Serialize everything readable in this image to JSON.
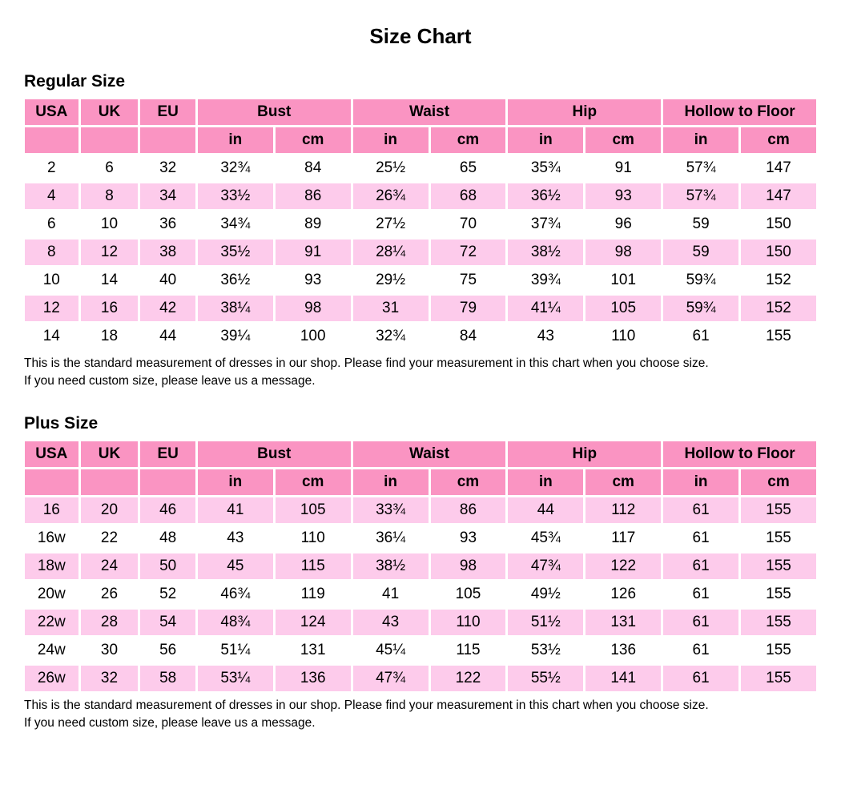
{
  "page": {
    "title": "Size Chart"
  },
  "colors": {
    "header_pink": "#FA94C2",
    "row_pink": "#FDCBEB",
    "row_white": "#FFFFFF",
    "text": "#000000"
  },
  "tables": [
    {
      "section_title": "Regular Size",
      "group_headers": [
        {
          "label": "USA",
          "span": 1
        },
        {
          "label": "UK",
          "span": 1
        },
        {
          "label": "EU",
          "span": 1
        },
        {
          "label": "Bust",
          "span": 2
        },
        {
          "label": "Waist",
          "span": 2
        },
        {
          "label": "Hip",
          "span": 2
        },
        {
          "label": "Hollow to Floor",
          "span": 2
        }
      ],
      "sub_headers": [
        "",
        "",
        "",
        "in",
        "cm",
        "in",
        "cm",
        "in",
        "cm",
        "in",
        "cm"
      ],
      "first_row_shaded": false,
      "rows": [
        [
          "2",
          "6",
          "32",
          "32¾",
          "84",
          "25½",
          "65",
          "35¾",
          "91",
          "57¾",
          "147"
        ],
        [
          "4",
          "8",
          "34",
          "33½",
          "86",
          "26¾",
          "68",
          "36½",
          "93",
          "57¾",
          "147"
        ],
        [
          "6",
          "10",
          "36",
          "34¾",
          "89",
          "27½",
          "70",
          "37¾",
          "96",
          "59",
          "150"
        ],
        [
          "8",
          "12",
          "38",
          "35½",
          "91",
          "28¼",
          "72",
          "38½",
          "98",
          "59",
          "150"
        ],
        [
          "10",
          "14",
          "40",
          "36½",
          "93",
          "29½",
          "75",
          "39¾",
          "101",
          "59¾",
          "152"
        ],
        [
          "12",
          "16",
          "42",
          "38¼",
          "98",
          "31",
          "79",
          "41¼",
          "105",
          "59¾",
          "152"
        ],
        [
          "14",
          "18",
          "44",
          "39¼",
          "100",
          "32¾",
          "84",
          "43",
          "110",
          "61",
          "155"
        ]
      ],
      "notes": [
        "This is the standard measurement of dresses in our shop. Please find your measurement in this chart when you choose size.",
        "If you need custom size, please leave us a message."
      ]
    },
    {
      "section_title": "Plus Size",
      "group_headers": [
        {
          "label": "USA",
          "span": 1
        },
        {
          "label": "UK",
          "span": 1
        },
        {
          "label": "EU",
          "span": 1
        },
        {
          "label": "Bust",
          "span": 2
        },
        {
          "label": "Waist",
          "span": 2
        },
        {
          "label": "Hip",
          "span": 2
        },
        {
          "label": "Hollow to Floor",
          "span": 2
        }
      ],
      "sub_headers": [
        "",
        "",
        "",
        "in",
        "cm",
        "in",
        "cm",
        "in",
        "cm",
        "in",
        "cm"
      ],
      "first_row_shaded": true,
      "rows": [
        [
          "16",
          "20",
          "46",
          "41",
          "105",
          "33¾",
          "86",
          "44",
          "112",
          "61",
          "155"
        ],
        [
          "16w",
          "22",
          "48",
          "43",
          "110",
          "36¼",
          "93",
          "45¾",
          "117",
          "61",
          "155"
        ],
        [
          "18w",
          "24",
          "50",
          "45",
          "115",
          "38½",
          "98",
          "47¾",
          "122",
          "61",
          "155"
        ],
        [
          "20w",
          "26",
          "52",
          "46¾",
          "119",
          "41",
          "105",
          "49½",
          "126",
          "61",
          "155"
        ],
        [
          "22w",
          "28",
          "54",
          "48¾",
          "124",
          "43",
          "110",
          "51½",
          "131",
          "61",
          "155"
        ],
        [
          "24w",
          "30",
          "56",
          "51¼",
          "131",
          "45¼",
          "115",
          "53½",
          "136",
          "61",
          "155"
        ],
        [
          "26w",
          "32",
          "58",
          "53¼",
          "136",
          "47¾",
          "122",
          "55½",
          "141",
          "61",
          "155"
        ]
      ],
      "notes": [
        "This is the standard measurement of dresses in our shop. Please find your measurement in this chart when you choose size.",
        "If you need custom size, please leave us a message."
      ]
    }
  ]
}
